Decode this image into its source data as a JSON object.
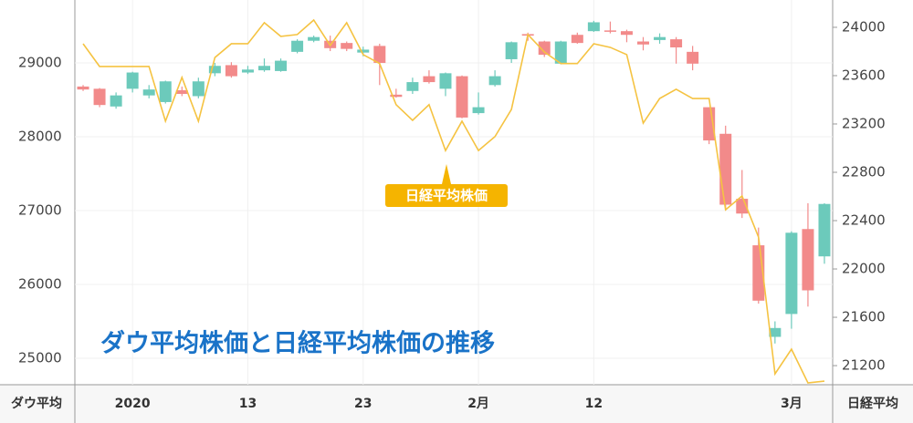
{
  "chart_data": {
    "type": "candlestick",
    "title": "ダウ平均株価と日経平均株価の推移",
    "y_label": "ダウ平均",
    "y2_label": "日経平均",
    "annotation": "日経平均株価",
    "categories": [
      null,
      null,
      null,
      "2020",
      null,
      null,
      null,
      null,
      null,
      null,
      "13",
      null,
      null,
      null,
      null,
      null,
      null,
      "23",
      null,
      null,
      null,
      null,
      null,
      null,
      "2月",
      null,
      null,
      null,
      null,
      null,
      null,
      "12",
      null,
      null,
      null,
      null,
      null,
      null,
      null,
      null,
      null,
      null,
      null,
      "3月",
      null,
      null
    ],
    "open": [
      28680,
      28650,
      28410,
      28650,
      28560,
      28470,
      28630,
      28550,
      28860,
      28970,
      28870,
      28900,
      28890,
      29150,
      29300,
      29300,
      29270,
      29140,
      29230,
      28570,
      28620,
      28820,
      28650,
      28820,
      28320,
      28700,
      29050,
      29390,
      29290,
      28990,
      29380,
      29430,
      29440,
      29430,
      29290,
      29310,
      29320,
      29150,
      28400,
      28040,
      27160,
      26530,
      25290,
      25600,
      26750,
      26380
    ],
    "high": [
      28700,
      28660,
      28600,
      28880,
      28700,
      28760,
      28680,
      28800,
      29000,
      29010,
      28960,
      29060,
      29060,
      29320,
      29370,
      29370,
      29290,
      29220,
      29260,
      28650,
      28800,
      28900,
      28870,
      28830,
      28600,
      28900,
      29290,
      29410,
      29300,
      29300,
      29410,
      29570,
      29560,
      29450,
      29350,
      29400,
      29350,
      29230,
      28400,
      28150,
      27550,
      26770,
      25500,
      26720,
      27100,
      27100
    ],
    "low": [
      28620,
      28400,
      28380,
      28600,
      28520,
      28450,
      28550,
      28520,
      28820,
      28800,
      28850,
      28880,
      28880,
      29130,
      29280,
      29160,
      29160,
      29090,
      28700,
      28530,
      28580,
      28720,
      28550,
      28250,
      28300,
      28680,
      29000,
      29300,
      29080,
      28980,
      29260,
      29420,
      29400,
      29280,
      29170,
      29260,
      28990,
      28900,
      27900,
      27000,
      26900,
      25740,
      25200,
      25400,
      25700,
      26280
    ],
    "close": [
      28640,
      28430,
      28560,
      28870,
      28640,
      28750,
      28580,
      28750,
      28960,
      28820,
      28910,
      28960,
      29030,
      29300,
      29350,
      29200,
      29190,
      29180,
      29000,
      28540,
      28740,
      28740,
      28860,
      28260,
      28400,
      28820,
      29280,
      29370,
      29110,
      29290,
      29270,
      29550,
      29430,
      29380,
      29250,
      29350,
      29210,
      28990,
      27950,
      27080,
      26960,
      25780,
      25410,
      26700,
      25920,
      27090
    ],
    "up_color": "#6ccabb",
    "down_color": "#f28a8a",
    "line": {
      "axis": "y2",
      "color": "#f5c342",
      "values": [
        23864,
        23676,
        23676,
        23676,
        23676,
        23223,
        23585,
        23223,
        23750,
        23864,
        23864,
        24038,
        23925,
        23940,
        24060,
        23850,
        24038,
        23774,
        23700,
        23360,
        23230,
        23360,
        22980,
        23223,
        22980,
        23095,
        23320,
        23940,
        23796,
        23700,
        23700,
        23864,
        23834,
        23774,
        23207,
        23411,
        23487,
        23411,
        23411,
        22490,
        22604,
        22264,
        21132,
        21336,
        21057,
        21072
      ]
    },
    "ylim": [
      24642,
      29852
    ],
    "yticks": [
      25000,
      26000,
      27000,
      28000,
      29000
    ],
    "y2lim": [
      21042,
      24226
    ],
    "y2ticks": [
      21200,
      21600,
      22000,
      22400,
      22800,
      23200,
      23600,
      24000
    ],
    "grid": true
  }
}
